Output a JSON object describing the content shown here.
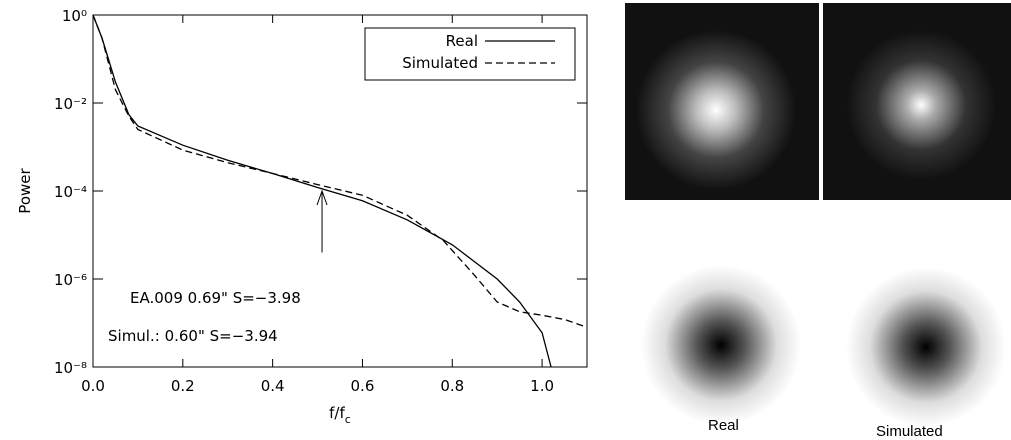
{
  "chart_data": {
    "type": "line",
    "ylabel": "Power",
    "xlabel": {
      "text": "f/f",
      "subscript": "c"
    },
    "xlim": [
      0,
      1.1
    ],
    "xticks": [
      {
        "value": 0,
        "label": "0.0"
      },
      0.2,
      0.4,
      0.6,
      0.8,
      {
        "value": 1,
        "label": "1.0"
      }
    ],
    "ylim": [
      1e-08,
      1
    ],
    "yticks": [
      {
        "value": 1,
        "label": "10⁰"
      },
      {
        "value": 0.01,
        "label": "10⁻²"
      },
      {
        "value": 0.0001,
        "label": "10⁻⁴"
      },
      {
        "value": 1e-06,
        "label": "10⁻⁶"
      },
      {
        "value": 1e-08,
        "label": "10⁻⁸"
      }
    ],
    "log_y": true,
    "legend": "top-right",
    "series": [
      {
        "name": "Real",
        "color": "#000000",
        "dash": "solid",
        "x": [
          0,
          0.02,
          0.05,
          0.08,
          0.1,
          0.2,
          0.3,
          0.4,
          0.5,
          0.6,
          0.7,
          0.8,
          0.9,
          0.95,
          1.0,
          1.02
        ],
        "values": [
          1,
          0.3,
          0.03,
          0.0054,
          0.003,
          0.0011,
          0.0005,
          0.00025,
          0.00012,
          6e-05,
          2.2e-05,
          6e-06,
          1e-06,
          3e-07,
          6e-08,
          1e-08
        ]
      },
      {
        "name": "Simulated",
        "color": "#000000",
        "dash": "dashed",
        "x": [
          0,
          0.02,
          0.05,
          0.08,
          0.1,
          0.2,
          0.3,
          0.4,
          0.5,
          0.6,
          0.7,
          0.78,
          0.85,
          0.9,
          0.95,
          1.0,
          1.05,
          1.1
        ],
        "values": [
          1,
          0.3,
          0.02,
          0.005,
          0.0025,
          0.00085,
          0.00044,
          0.00025,
          0.00014,
          8e-05,
          2.8e-05,
          7.5e-06,
          1.2e-06,
          3e-07,
          1.8e-07,
          1.5e-07,
          1.2e-07,
          8e-08
        ]
      }
    ],
    "arrow": {
      "x": 0.51,
      "y_tip": 0.0001,
      "y_tail": 4e-06
    },
    "annotations": [
      "EA.009   0.69\" S=−3.98",
      "Simul.:   0.60\" S=−3.94"
    ]
  },
  "panel": {
    "captions": [
      "Real",
      "Simulated"
    ]
  }
}
